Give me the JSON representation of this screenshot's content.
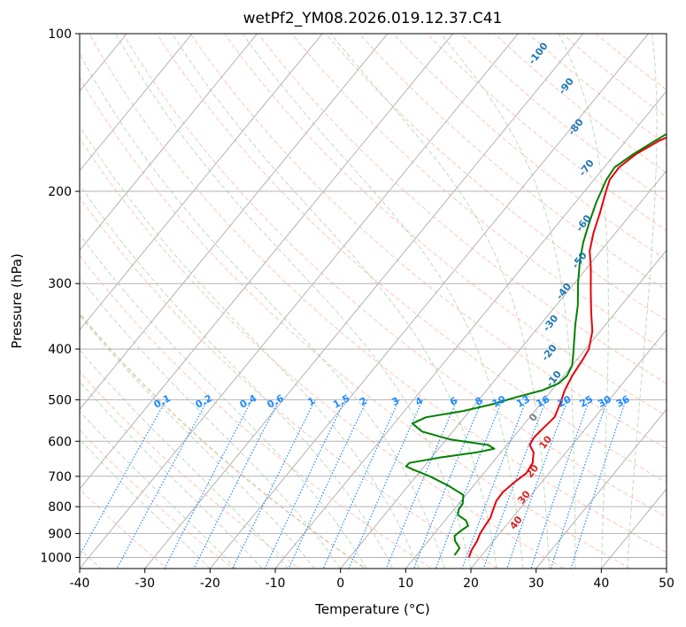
{
  "chart_data": {
    "type": "line",
    "title": "wetPf2_YM08.2026.019.12.37.C41",
    "xlabel": "Temperature (°C)",
    "ylabel": "Pressure (hPa)",
    "xlim": [
      -40,
      50
    ],
    "ylim": [
      1050,
      100
    ],
    "x_ticks": [
      "-40",
      "-30",
      "-20",
      "-10",
      "0",
      "10",
      "20",
      "30",
      "40",
      "50"
    ],
    "y_ticks": [
      "100",
      "200",
      "300",
      "400",
      "500",
      "600",
      "700",
      "800",
      "900",
      "1000"
    ],
    "dry_adiabat_labels": [
      "-100",
      "-90",
      "-80",
      "-70",
      "-60",
      "-50",
      "-40",
      "-30",
      "-20",
      "-10",
      "0",
      "10",
      "20",
      "30",
      "40"
    ],
    "mixing_ratio_labels": [
      "0.1",
      "0.2",
      "0.4",
      "0.6",
      "1",
      "1.5",
      "2",
      "3",
      "4",
      "6",
      "8",
      "10",
      "13",
      "16",
      "20",
      "25",
      "30",
      "36"
    ],
    "series": [
      {
        "name": "Temperature",
        "color": "#e8000b",
        "points": [
          {
            "p": 1000,
            "t": 18.3
          },
          {
            "p": 970,
            "t": 17.8
          },
          {
            "p": 930,
            "t": 17.5
          },
          {
            "p": 900,
            "t": 17.0
          },
          {
            "p": 870,
            "t": 16.8
          },
          {
            "p": 840,
            "t": 16.6
          },
          {
            "p": 810,
            "t": 16.0
          },
          {
            "p": 780,
            "t": 15.4
          },
          {
            "p": 750,
            "t": 15.3
          },
          {
            "p": 720,
            "t": 15.8
          },
          {
            "p": 690,
            "t": 16.5
          },
          {
            "p": 660,
            "t": 16.2
          },
          {
            "p": 630,
            "t": 15.0
          },
          {
            "p": 610,
            "t": 13.5
          },
          {
            "p": 590,
            "t": 13.2
          },
          {
            "p": 570,
            "t": 13.4
          },
          {
            "p": 540,
            "t": 13.8
          },
          {
            "p": 510,
            "t": 13.0
          },
          {
            "p": 480,
            "t": 12.0
          },
          {
            "p": 450,
            "t": 11.3
          },
          {
            "p": 420,
            "t": 10.9
          },
          {
            "p": 400,
            "t": 10.5
          },
          {
            "p": 370,
            "t": 8.8
          },
          {
            "p": 340,
            "t": 6.2
          },
          {
            "p": 310,
            "t": 3.5
          },
          {
            "p": 280,
            "t": 0.6
          },
          {
            "p": 260,
            "t": -1.7
          },
          {
            "p": 240,
            "t": -3.4
          },
          {
            "p": 220,
            "t": -4.9
          },
          {
            "p": 200,
            "t": -6.7
          },
          {
            "p": 190,
            "t": -7.6
          },
          {
            "p": 180,
            "t": -7.7
          },
          {
            "p": 170,
            "t": -6.8
          },
          {
            "p": 160,
            "t": -4.9
          },
          {
            "p": 150,
            "t": -1.2
          },
          {
            "p": 140,
            "t": 3.7
          },
          {
            "p": 130,
            "t": 7.4
          },
          {
            "p": 120,
            "t": 8.4
          },
          {
            "p": 112,
            "t": 10.9
          },
          {
            "p": 106,
            "t": 13.2
          },
          {
            "p": 100,
            "t": 14.6
          }
        ]
      },
      {
        "name": "Dewpoint",
        "color": "#008000",
        "points": [
          {
            "p": 990,
            "t": 15.8
          },
          {
            "p": 960,
            "t": 15.7
          },
          {
            "p": 930,
            "t": 14.1
          },
          {
            "p": 910,
            "t": 13.4
          },
          {
            "p": 890,
            "t": 13.7
          },
          {
            "p": 870,
            "t": 14.2
          },
          {
            "p": 850,
            "t": 13.2
          },
          {
            "p": 830,
            "t": 11.3
          },
          {
            "p": 810,
            "t": 10.7
          },
          {
            "p": 790,
            "t": 10.6
          },
          {
            "p": 760,
            "t": 9.6
          },
          {
            "p": 730,
            "t": 6.2
          },
          {
            "p": 700,
            "t": 2.1
          },
          {
            "p": 680,
            "t": -1.2
          },
          {
            "p": 670,
            "t": -2.8
          },
          {
            "p": 660,
            "t": -2.7
          },
          {
            "p": 645,
            "t": 1.2
          },
          {
            "p": 630,
            "t": 6.3
          },
          {
            "p": 620,
            "t": 8.5
          },
          {
            "p": 610,
            "t": 7.1
          },
          {
            "p": 595,
            "t": 0.5
          },
          {
            "p": 575,
            "t": -4.7
          },
          {
            "p": 555,
            "t": -7.2
          },
          {
            "p": 540,
            "t": -5.9
          },
          {
            "p": 525,
            "t": -0.9
          },
          {
            "p": 510,
            "t": 2.6
          },
          {
            "p": 495,
            "t": 5.3
          },
          {
            "p": 480,
            "t": 8.5
          },
          {
            "p": 465,
            "t": 10.2
          },
          {
            "p": 450,
            "t": 10.5
          },
          {
            "p": 430,
            "t": 10.0
          },
          {
            "p": 410,
            "t": 8.8
          },
          {
            "p": 390,
            "t": 7.5
          },
          {
            "p": 360,
            "t": 5.4
          },
          {
            "p": 330,
            "t": 3.3
          },
          {
            "p": 300,
            "t": 0.6
          },
          {
            "p": 270,
            "t": -2.1
          },
          {
            "p": 250,
            "t": -3.8
          },
          {
            "p": 230,
            "t": -5.3
          },
          {
            "p": 210,
            "t": -6.8
          },
          {
            "p": 190,
            "t": -8.1
          },
          {
            "p": 180,
            "t": -8.4
          },
          {
            "p": 170,
            "t": -7.2
          },
          {
            "p": 160,
            "t": -5.5
          },
          {
            "p": 150,
            "t": -3.5
          },
          {
            "p": 140,
            "t": -2.6
          },
          {
            "p": 130,
            "t": -4.6
          },
          {
            "p": 124,
            "t": -7.5
          },
          {
            "p": 118,
            "t": -9.0
          },
          {
            "p": 110,
            "t": -9.1
          },
          {
            "p": 104,
            "t": -9.0
          },
          {
            "p": 100,
            "t": -8.6
          }
        ]
      }
    ]
  }
}
